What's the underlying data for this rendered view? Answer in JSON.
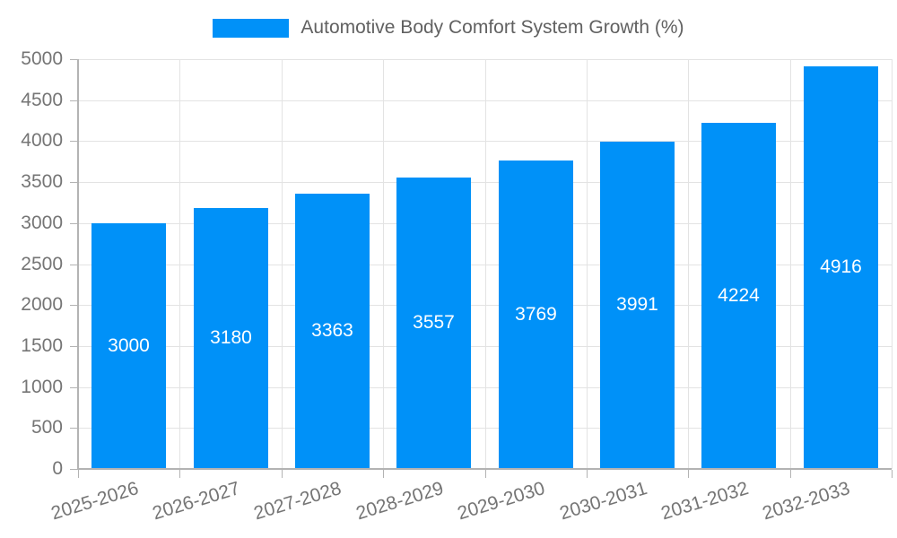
{
  "legend": {
    "label": "Automotive Body Comfort System Growth (%)"
  },
  "colors": {
    "bar": "#0091f8",
    "grid": "#e3e3e3",
    "axis": "#b3b3b3",
    "axis_text": "#757575",
    "legend_text": "#616161",
    "value_label": "#ffffff",
    "background": "#ffffff"
  },
  "chart_data": {
    "type": "bar",
    "title": "Automotive Body Comfort System Growth (%)",
    "categories": [
      "2025-2026",
      "2026-2027",
      "2027-2028",
      "2028-2029",
      "2029-2030",
      "2030-2031",
      "2031-2032",
      "2032-2033"
    ],
    "values": [
      3000,
      3180,
      3363,
      3557,
      3769,
      3991,
      4224,
      4916
    ],
    "value_labels": [
      "3000",
      "3180",
      "3363",
      "3557",
      "3769",
      "3991",
      "4224",
      "4916"
    ],
    "xlabel": "",
    "ylabel": "",
    "ylim": [
      0,
      5000
    ],
    "ytick_step": 500,
    "ytick_labels": [
      "0",
      "500",
      "1000",
      "1500",
      "2000",
      "2500",
      "3000",
      "3500",
      "4000",
      "4500",
      "5000"
    ],
    "grid": true,
    "legend_position": "top",
    "value_labels_inside": true
  }
}
